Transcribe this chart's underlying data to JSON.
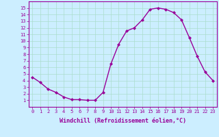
{
  "x": [
    0,
    1,
    2,
    3,
    4,
    5,
    6,
    7,
    8,
    9,
    10,
    11,
    12,
    13,
    14,
    15,
    16,
    17,
    18,
    19,
    20,
    21,
    22,
    23
  ],
  "y": [
    4.5,
    3.7,
    2.7,
    2.2,
    1.5,
    1.1,
    1.1,
    1.0,
    1.0,
    2.2,
    6.5,
    9.5,
    11.5,
    12.0,
    13.2,
    14.8,
    15.0,
    14.8,
    14.3,
    13.2,
    10.5,
    7.7,
    5.3,
    4.0
  ],
  "line_color": "#990099",
  "marker": "D",
  "marker_size": 2,
  "bg_color": "#cceeff",
  "grid_color": "#aaddcc",
  "xlabel": "Windchill (Refroidissement éolien,°C)",
  "xlim": [
    -0.5,
    23.5
  ],
  "ylim": [
    0,
    16
  ],
  "yticks": [
    1,
    2,
    3,
    4,
    5,
    6,
    7,
    8,
    9,
    10,
    11,
    12,
    13,
    14,
    15
  ],
  "xticks": [
    0,
    1,
    2,
    3,
    4,
    5,
    6,
    7,
    8,
    9,
    10,
    11,
    12,
    13,
    14,
    15,
    16,
    17,
    18,
    19,
    20,
    21,
    22,
    23
  ],
  "tick_label_fontsize": 5.0,
  "xlabel_fontsize": 6.0,
  "line_width": 1.0
}
